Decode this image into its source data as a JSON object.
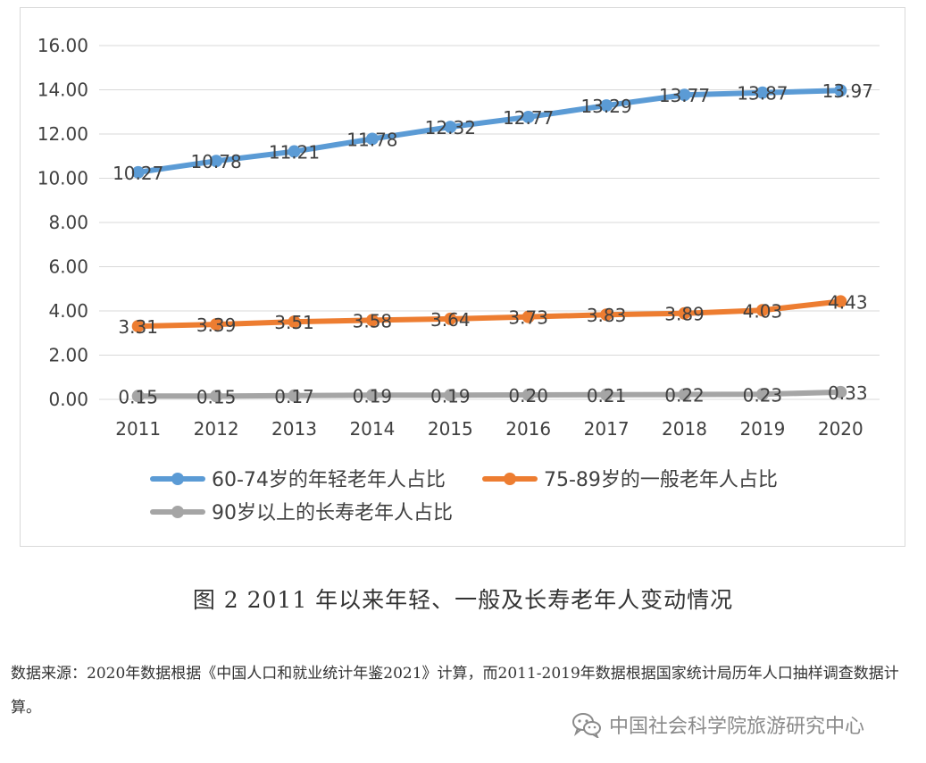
{
  "chart_data": {
    "type": "line",
    "categories": [
      "2011",
      "2012",
      "2013",
      "2014",
      "2015",
      "2016",
      "2017",
      "2018",
      "2019",
      "2020"
    ],
    "ylim": [
      0,
      16
    ],
    "yticks": [
      "0.00",
      "2.00",
      "4.00",
      "6.00",
      "8.00",
      "10.00",
      "12.00",
      "14.00",
      "16.00"
    ],
    "grid": true,
    "legend_position": "bottom",
    "series": [
      {
        "name": "60-74岁的年轻老年人占比",
        "color": "#5b9bd5",
        "values": [
          10.27,
          10.78,
          11.21,
          11.78,
          12.32,
          12.77,
          13.29,
          13.77,
          13.87,
          13.97
        ],
        "labels": [
          "10.27",
          "10.78",
          "11.21",
          "11.78",
          "12.32",
          "12.77",
          "13.29",
          "13.77",
          "13.87",
          "13.97"
        ]
      },
      {
        "name": "75-89岁的一般老年人占比",
        "color": "#ed7d31",
        "values": [
          3.31,
          3.39,
          3.51,
          3.58,
          3.64,
          3.73,
          3.83,
          3.89,
          4.03,
          4.43
        ],
        "labels": [
          "3.31",
          "3.39",
          "3.51",
          "3.58",
          "3.64",
          "3.73",
          "3.83",
          "3.89",
          "4.03",
          "4.43"
        ]
      },
      {
        "name": "90岁以上的长寿老年人占比",
        "color": "#a5a5a5",
        "values": [
          0.15,
          0.15,
          0.17,
          0.19,
          0.19,
          0.2,
          0.21,
          0.22,
          0.23,
          0.33
        ],
        "labels": [
          "0.15",
          "0.15",
          "0.17",
          "0.19",
          "0.19",
          "0.20",
          "0.21",
          "0.22",
          "0.23",
          "0.33"
        ]
      }
    ]
  },
  "caption": "图 2  2011 年以来年轻、一般及长寿老年人变动情况",
  "source_note": "数据来源：2020年数据根据《中国人口和就业统计年鉴2021》计算，而2011-2019年数据根据国家统计局历年人口抽样调查数据计算。",
  "watermark": {
    "text": "中国社会科学院旅游研究中心",
    "icon": "wechat-icon",
    "color": "#8a8a8a"
  }
}
